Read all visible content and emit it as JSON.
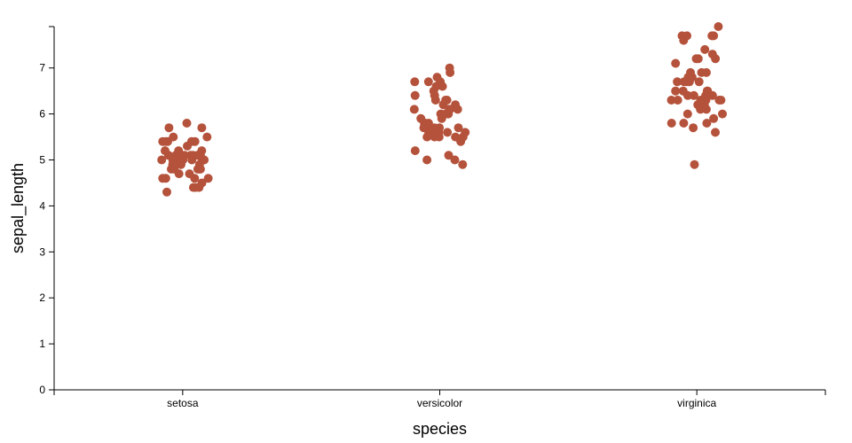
{
  "chart_data": {
    "type": "scatter",
    "title": "",
    "xlabel": "species",
    "ylabel": "sepal_length",
    "categories": [
      "setosa",
      "versicolor",
      "virginica"
    ],
    "ylim": [
      0,
      7.9
    ],
    "yticks": [
      0,
      1,
      2,
      3,
      4,
      5,
      6,
      7
    ],
    "grid": false,
    "legend": "none",
    "point_color": "#b5523b",
    "series": [
      {
        "category": "setosa",
        "values": [
          5.1,
          4.9,
          4.7,
          4.6,
          5.0,
          5.4,
          4.6,
          5.0,
          4.4,
          4.9,
          5.4,
          4.8,
          4.8,
          4.3,
          5.8,
          5.7,
          5.4,
          5.1,
          5.7,
          5.1,
          5.4,
          5.1,
          4.6,
          5.1,
          4.8,
          5.0,
          5.0,
          5.2,
          5.2,
          4.7,
          4.8,
          5.4,
          5.2,
          5.5,
          4.9,
          5.0,
          5.5,
          4.9,
          4.4,
          5.1,
          5.0,
          4.5,
          4.4,
          5.0,
          5.1,
          4.8,
          5.1,
          4.6,
          5.3,
          5.0
        ]
      },
      {
        "category": "versicolor",
        "values": [
          7.0,
          6.4,
          6.9,
          5.5,
          6.5,
          5.7,
          6.3,
          4.9,
          6.6,
          5.2,
          5.0,
          5.9,
          6.0,
          6.1,
          5.6,
          6.7,
          5.6,
          5.8,
          6.2,
          5.6,
          5.9,
          6.1,
          6.3,
          6.1,
          6.4,
          6.6,
          6.8,
          6.7,
          6.0,
          5.7,
          5.5,
          5.5,
          5.8,
          6.0,
          5.4,
          6.0,
          6.7,
          6.3,
          5.6,
          5.5,
          5.5,
          6.1,
          5.8,
          5.0,
          5.6,
          5.7,
          5.7,
          6.2,
          5.1,
          5.7
        ]
      },
      {
        "category": "virginica",
        "values": [
          6.3,
          5.8,
          7.1,
          6.3,
          6.5,
          7.6,
          4.9,
          7.3,
          6.7,
          7.2,
          6.5,
          6.4,
          6.8,
          5.7,
          5.8,
          6.4,
          6.5,
          7.7,
          7.7,
          6.0,
          6.9,
          5.6,
          7.7,
          6.3,
          6.7,
          7.2,
          6.2,
          6.1,
          6.4,
          7.2,
          7.4,
          7.9,
          6.4,
          6.3,
          6.1,
          7.7,
          6.3,
          6.4,
          6.0,
          6.9,
          6.7,
          6.9,
          5.8,
          6.8,
          6.7,
          6.7,
          6.3,
          6.5,
          6.2,
          5.9
        ]
      }
    ]
  }
}
